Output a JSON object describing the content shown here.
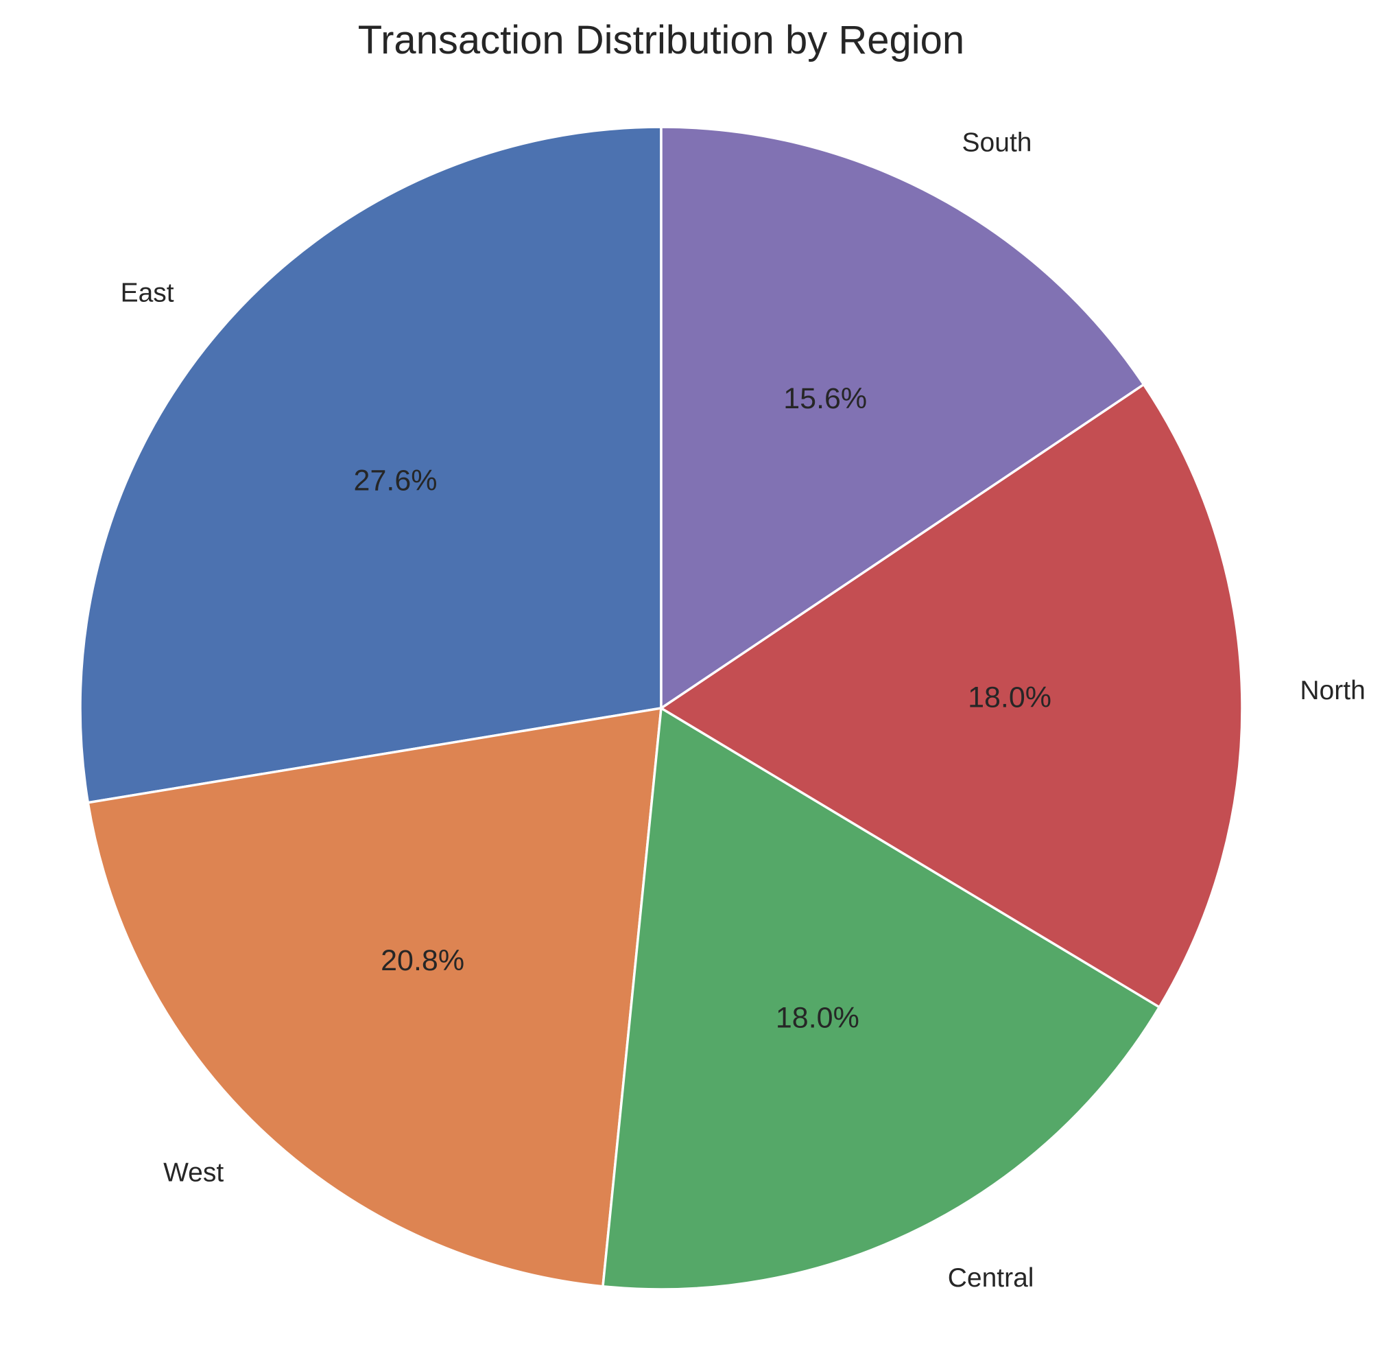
{
  "chart_data": {
    "type": "pie",
    "title": "Transaction Distribution by Region",
    "start_angle_deg": 90,
    "direction": "counterclockwise",
    "slices": [
      {
        "label": "East",
        "value": 27.6,
        "pct_label": "27.6%",
        "color": "#4c72b0"
      },
      {
        "label": "West",
        "value": 20.8,
        "pct_label": "20.8%",
        "color": "#dd8452"
      },
      {
        "label": "Central",
        "value": 18.0,
        "pct_label": "18.0%",
        "color": "#55a868"
      },
      {
        "label": "North",
        "value": 18.0,
        "pct_label": "18.0%",
        "color": "#c44e52"
      },
      {
        "label": "South",
        "value": 15.6,
        "pct_label": "15.6%",
        "color": "#8172b3"
      }
    ]
  }
}
